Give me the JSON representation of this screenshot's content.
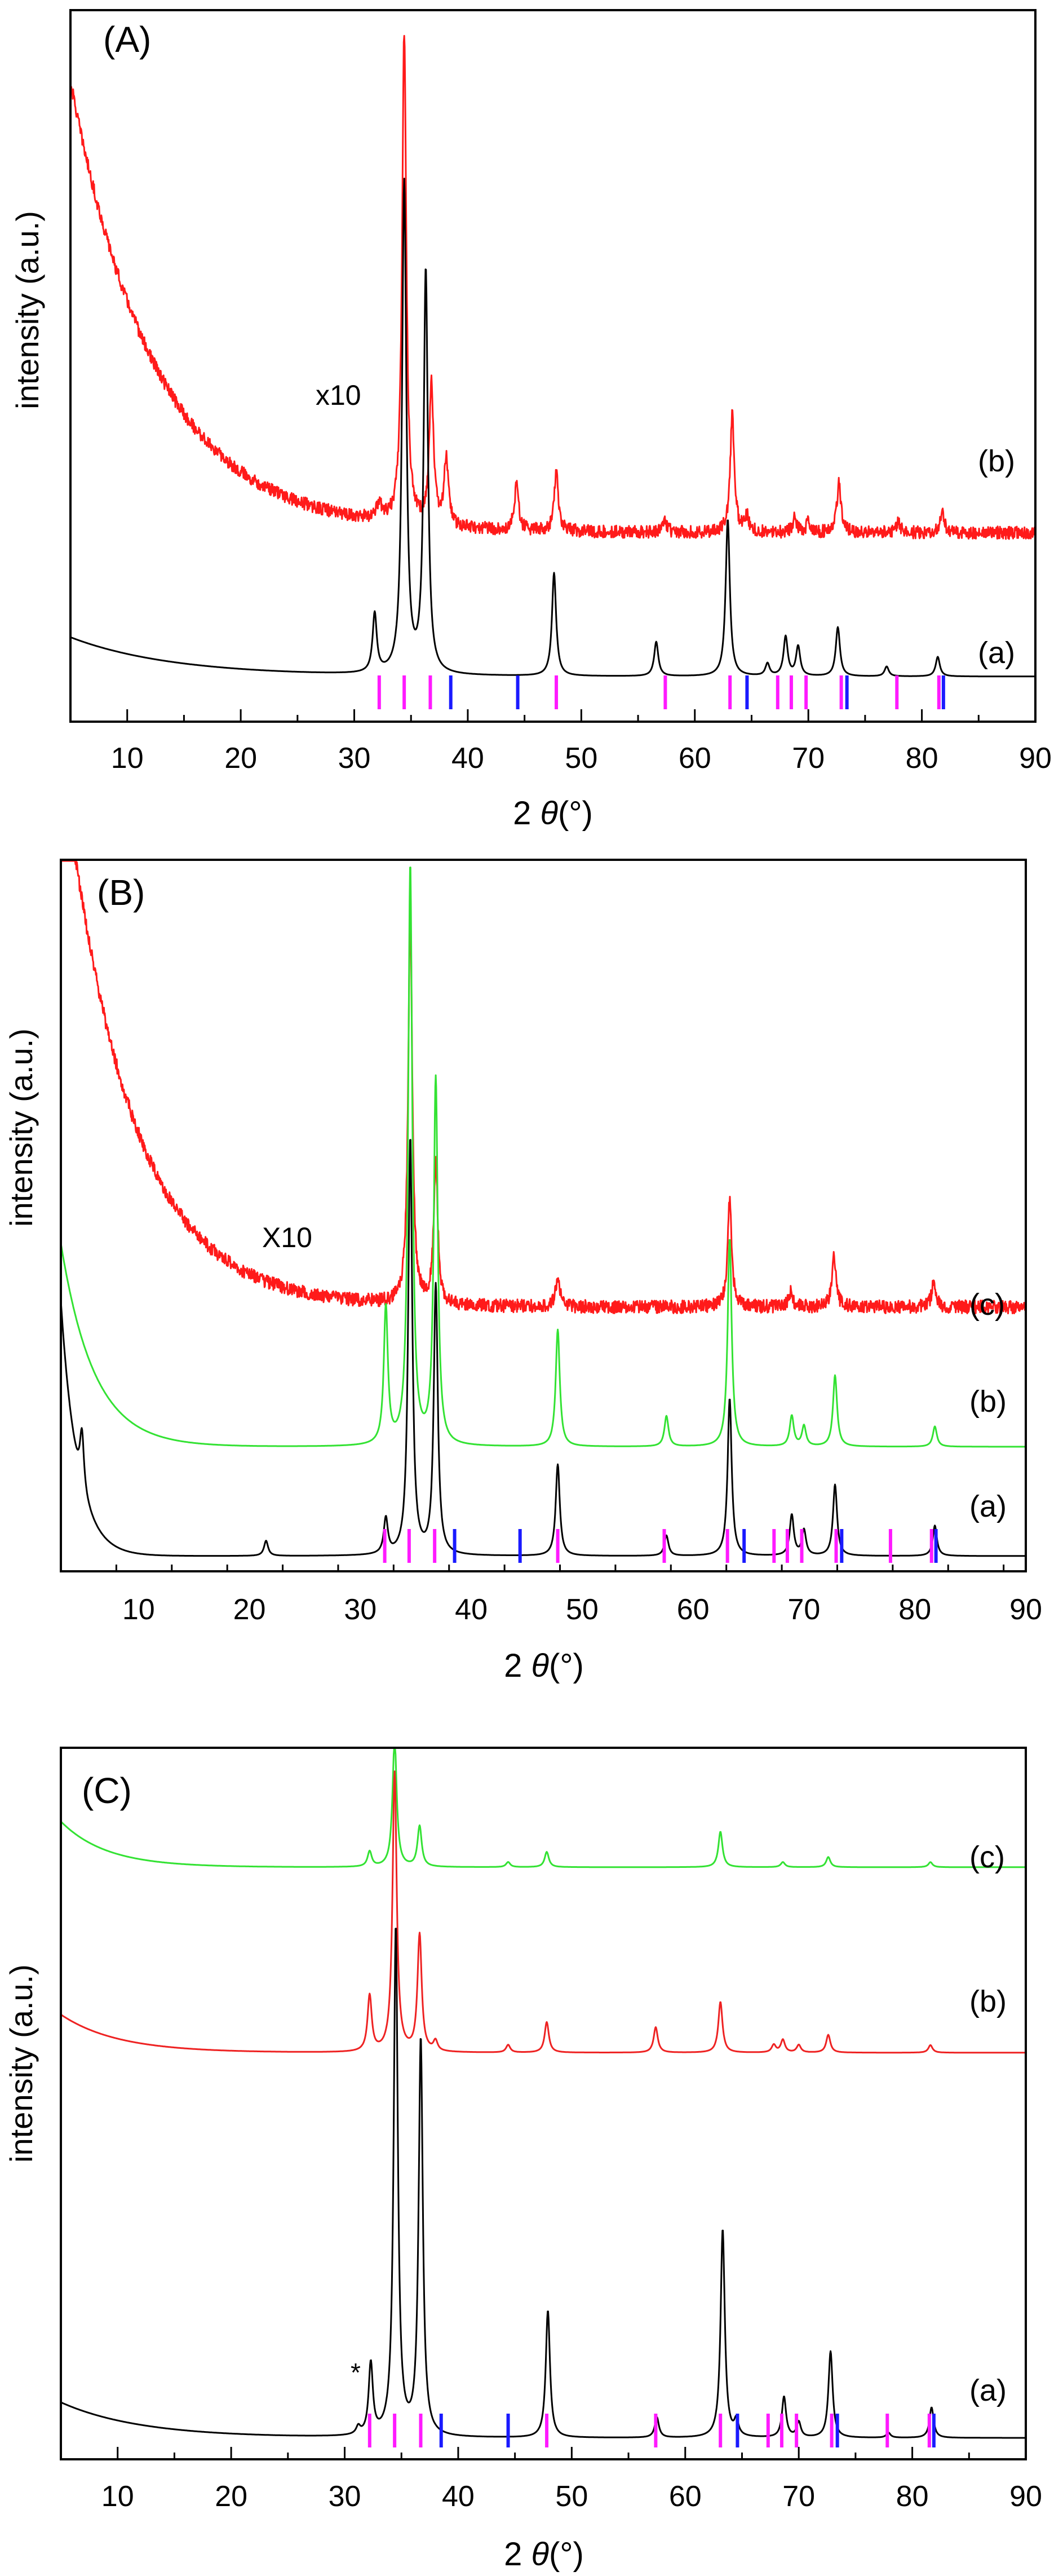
{
  "figure": {
    "panels": [
      {
        "id": "A",
        "label": "(A)",
        "ylabel": "intensity (a.u.)",
        "xlabel_prefix": "2 ",
        "xlabel_symbol": "θ",
        "xlabel_unit": "(°)",
        "annotation": "x10",
        "curve_labels": [
          "(b)",
          "(a)"
        ]
      },
      {
        "id": "B",
        "label": "(B)",
        "ylabel": "intensity (a.u.)",
        "xlabel_prefix": "2 ",
        "xlabel_symbol": "θ",
        "xlabel_unit": "(°)",
        "annotation": "X10",
        "curve_labels": [
          "(c)",
          "(b)",
          "(a)"
        ]
      },
      {
        "id": "C",
        "label": "(C)",
        "ylabel": "intensity (a.u.)",
        "xlabel_prefix": "2 ",
        "xlabel_symbol": "θ",
        "xlabel_unit": "(°)",
        "annotation": "*",
        "curve_labels": [
          "(c)",
          "(b)",
          "(a)"
        ]
      }
    ]
  },
  "chart_data": [
    {
      "type": "line",
      "panel": "(A)",
      "xlabel": "2 θ(°)",
      "ylabel": "intensity (a.u.)",
      "xlim": [
        5,
        90
      ],
      "xticks": [
        10,
        20,
        30,
        40,
        50,
        60,
        70,
        80,
        90
      ],
      "ylim": [
        0,
        14.5
      ],
      "yticks_shown": false,
      "legend": "none",
      "series": [
        {
          "name": "(b)",
          "color": "#ff1a1a",
          "baseline": 3.85,
          "noise": 0.13,
          "linewidth": 3,
          "background": {
            "amp": 9.2,
            "decay": 7.5,
            "start": 5
          },
          "peaks": [
            [
              32.2,
              0.35
            ],
            [
              34.4,
              10
            ],
            [
              36.8,
              2.9
            ],
            [
              38.1,
              1.4
            ],
            [
              44.3,
              0.9
            ],
            [
              47.8,
              1.2
            ],
            [
              57.4,
              0.2
            ],
            [
              63.3,
              2.4
            ],
            [
              64.6,
              0.3
            ],
            [
              68.8,
              0.3
            ],
            [
              70.0,
              0.2
            ],
            [
              72.7,
              1.0
            ],
            [
              77.9,
              0.2
            ],
            [
              81.8,
              0.4
            ]
          ]
        },
        {
          "name": "(a)",
          "color": "#000000",
          "baseline": 0.92,
          "noise": 0,
          "linewidth": 3,
          "background": {
            "amp": 0.8,
            "decay": 9,
            "start": 5
          },
          "peaks": [
            [
              31.8,
              1.2
            ],
            [
              34.4,
              10
            ],
            [
              36.3,
              8.2
            ],
            [
              47.6,
              2.1
            ],
            [
              56.6,
              0.7
            ],
            [
              62.9,
              3.2
            ],
            [
              66.4,
              0.25
            ],
            [
              68.0,
              0.8
            ],
            [
              69.1,
              0.6
            ],
            [
              72.6,
              1.0
            ],
            [
              76.9,
              0.2
            ],
            [
              81.4,
              0.4
            ]
          ]
        }
      ],
      "reference_ticks": {
        "magenta": [
          32.2,
          34.4,
          36.7,
          47.8,
          57.4,
          63.1,
          67.3,
          68.5,
          69.8,
          72.9,
          77.8,
          81.5
        ],
        "blue": [
          38.5,
          44.4,
          64.6,
          73.4,
          81.9
        ]
      }
    },
    {
      "type": "line",
      "panel": "(B)",
      "xlabel": "2 θ(°)",
      "ylabel": "intensity (a.u.)",
      "xlim": [
        3,
        90
      ],
      "xticks": [
        10,
        20,
        30,
        40,
        50,
        60,
        70,
        80,
        90
      ],
      "ylim": [
        0,
        14
      ],
      "yticks_shown": false,
      "legend": "none",
      "series": [
        {
          "name": "(c)",
          "color": "#ff1a1a",
          "baseline": 5.2,
          "noise": 0.13,
          "linewidth": 3,
          "background": {
            "amp": 11,
            "decay": 6,
            "start": 3
          },
          "peaks": [
            [
              34.5,
              7.7
            ],
            [
              36.8,
              2.8
            ],
            [
              47.8,
              0.6
            ],
            [
              63.3,
              2.1
            ],
            [
              68.8,
              0.3
            ],
            [
              72.7,
              1.0
            ],
            [
              81.7,
              0.5
            ]
          ]
        },
        {
          "name": "(b)",
          "color": "#33e233",
          "baseline": 2.45,
          "noise": 0,
          "linewidth": 3,
          "background": {
            "amp": 4,
            "decay": 3,
            "start": 3
          },
          "peaks": [
            [
              32.3,
              2.7
            ],
            [
              34.5,
              11.4
            ],
            [
              36.8,
              7.2
            ],
            [
              47.8,
              2.3
            ],
            [
              57.6,
              0.6
            ],
            [
              63.3,
              4.1
            ],
            [
              68.9,
              0.6
            ],
            [
              70.0,
              0.4
            ],
            [
              72.8,
              1.4
            ],
            [
              81.8,
              0.4
            ]
          ]
        },
        {
          "name": "(a)",
          "color": "#000000",
          "baseline": 0.3,
          "noise": 0,
          "linewidth": 3,
          "background": {
            "amp": 5,
            "decay": 1.5,
            "start": 3
          },
          "peaks": [
            [
              4.9,
              1.1
            ],
            [
              21.5,
              0.3
            ],
            [
              32.3,
              0.7
            ],
            [
              34.5,
              8.2
            ],
            [
              36.8,
              5.3
            ],
            [
              47.8,
              1.8
            ],
            [
              57.6,
              0.4
            ],
            [
              63.3,
              3.1
            ],
            [
              68.9,
              0.8
            ],
            [
              70.0,
              0.5
            ],
            [
              72.8,
              1.4
            ],
            [
              81.8,
              0.6
            ]
          ]
        }
      ],
      "reference_ticks": {
        "magenta": [
          32.2,
          34.4,
          36.7,
          47.8,
          57.4,
          63.1,
          67.3,
          68.5,
          69.8,
          72.9,
          77.8,
          81.5
        ],
        "blue": [
          38.5,
          44.4,
          64.6,
          73.4,
          81.9
        ]
      }
    },
    {
      "type": "line",
      "panel": "(C)",
      "xlabel": "2 θ(°)",
      "ylabel": "intensity (a.u.)",
      "xlim": [
        5,
        90
      ],
      "xticks": [
        10,
        20,
        30,
        40,
        50,
        60,
        70,
        80,
        90
      ],
      "ylim": [
        0,
        14
      ],
      "yticks_shown": false,
      "legend": "none",
      "series": [
        {
          "name": "(c)",
          "color": "#33e233",
          "baseline": 11.65,
          "noise": 0,
          "linewidth": 3,
          "background": {
            "amp": 0.9,
            "decay": 4,
            "start": 5
          },
          "peaks": [
            [
              32.2,
              0.3
            ],
            [
              34.4,
              2.5
            ],
            [
              36.6,
              0.8
            ],
            [
              44.4,
              0.1
            ],
            [
              47.8,
              0.3
            ],
            [
              63.1,
              0.7
            ],
            [
              68.6,
              0.1
            ],
            [
              72.6,
              0.2
            ],
            [
              81.6,
              0.1
            ]
          ]
        },
        {
          "name": "(b)",
          "color": "#ee2222",
          "baseline": 8.0,
          "noise": 0,
          "linewidth": 3,
          "background": {
            "amp": 0.75,
            "decay": 5,
            "start": 5
          },
          "peaks": [
            [
              32.2,
              1.1
            ],
            [
              34.4,
              5.5
            ],
            [
              36.6,
              2.3
            ],
            [
              38.0,
              0.2
            ],
            [
              44.4,
              0.15
            ],
            [
              47.8,
              0.6
            ],
            [
              57.4,
              0.5
            ],
            [
              63.1,
              1.0
            ],
            [
              67.8,
              0.15
            ],
            [
              68.6,
              0.25
            ],
            [
              70.0,
              0.15
            ],
            [
              72.6,
              0.35
            ],
            [
              81.6,
              0.15
            ]
          ]
        },
        {
          "name": "(a)",
          "color": "#000000",
          "baseline": 0.42,
          "noise": 0,
          "linewidth": 3,
          "background": {
            "amp": 0.7,
            "decay": 7,
            "start": 5
          },
          "peaks": [
            [
              31.2,
              0.15
            ],
            [
              32.3,
              1.4
            ],
            [
              34.5,
              10
            ],
            [
              36.7,
              7.8
            ],
            [
              47.9,
              2.5
            ],
            [
              57.5,
              0.4
            ],
            [
              63.3,
              4.1
            ],
            [
              64.5,
              0.3
            ],
            [
              68.7,
              0.8
            ],
            [
              70.0,
              0.3
            ],
            [
              72.8,
              1.7
            ],
            [
              77.9,
              0.1
            ],
            [
              81.7,
              0.6
            ]
          ]
        }
      ],
      "reference_ticks": {
        "magenta": [
          32.2,
          34.4,
          36.7,
          47.8,
          57.4,
          63.1,
          67.3,
          68.5,
          69.8,
          72.9,
          77.8,
          81.5
        ],
        "blue": [
          38.5,
          44.4,
          64.6,
          73.4,
          81.9
        ]
      }
    }
  ]
}
